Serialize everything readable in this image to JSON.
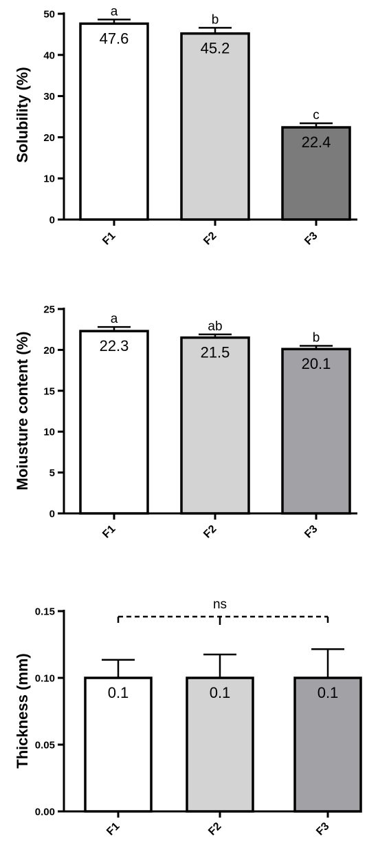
{
  "colors": {
    "F1": "#ffffff",
    "F2": "#d3d3d3",
    "F3_solubility": "#7b7b7b",
    "F3": "#a2a2a6",
    "stroke": "#000000"
  },
  "chart_data": [
    {
      "type": "bar",
      "categories": [
        "F1",
        "F2",
        "F3"
      ],
      "values": [
        47.6,
        45.2,
        22.4
      ],
      "errors": [
        1.0,
        1.4,
        1.0
      ],
      "value_labels": [
        "47.6",
        "45.2",
        "22.4"
      ],
      "significance_letters": [
        "a",
        "b",
        "c"
      ],
      "title": "",
      "xlabel": "",
      "ylabel": "Solubility (%)",
      "ylim": [
        0,
        50
      ],
      "yticks": [
        "0",
        "10",
        "20",
        "30",
        "40",
        "50"
      ],
      "grid": false,
      "bar_colors": [
        "#ffffff",
        "#d3d3d3",
        "#7b7b7b"
      ]
    },
    {
      "type": "bar",
      "categories": [
        "F1",
        "F2",
        "F3"
      ],
      "values": [
        22.3,
        21.5,
        20.1
      ],
      "errors": [
        0.5,
        0.4,
        0.4
      ],
      "value_labels": [
        "22.3",
        "21.5",
        "20.1"
      ],
      "significance_letters": [
        "a",
        "ab",
        "b"
      ],
      "title": "",
      "xlabel": "",
      "ylabel": "Moiusture content (%)",
      "ylim": [
        0,
        25
      ],
      "yticks": [
        "0",
        "5",
        "10",
        "15",
        "20",
        "25"
      ],
      "grid": false,
      "bar_colors": [
        "#ffffff",
        "#d3d3d3",
        "#a2a2a6"
      ]
    },
    {
      "type": "bar",
      "categories": [
        "F1",
        "F2",
        "F3"
      ],
      "values": [
        0.1,
        0.1,
        0.1
      ],
      "errors": [
        0.0135,
        0.0175,
        0.0215
      ],
      "value_labels": [
        "0.1",
        "0.1",
        "0.1"
      ],
      "bracket_label": "ns",
      "title": "",
      "xlabel": "",
      "ylabel": "Thickness (mm)",
      "ylim": [
        0,
        0.15
      ],
      "yticks": [
        "0.00",
        "0.05",
        "0.10",
        "0.15"
      ],
      "grid": false,
      "bar_colors": [
        "#ffffff",
        "#d3d3d3",
        "#a2a2a6"
      ]
    }
  ]
}
